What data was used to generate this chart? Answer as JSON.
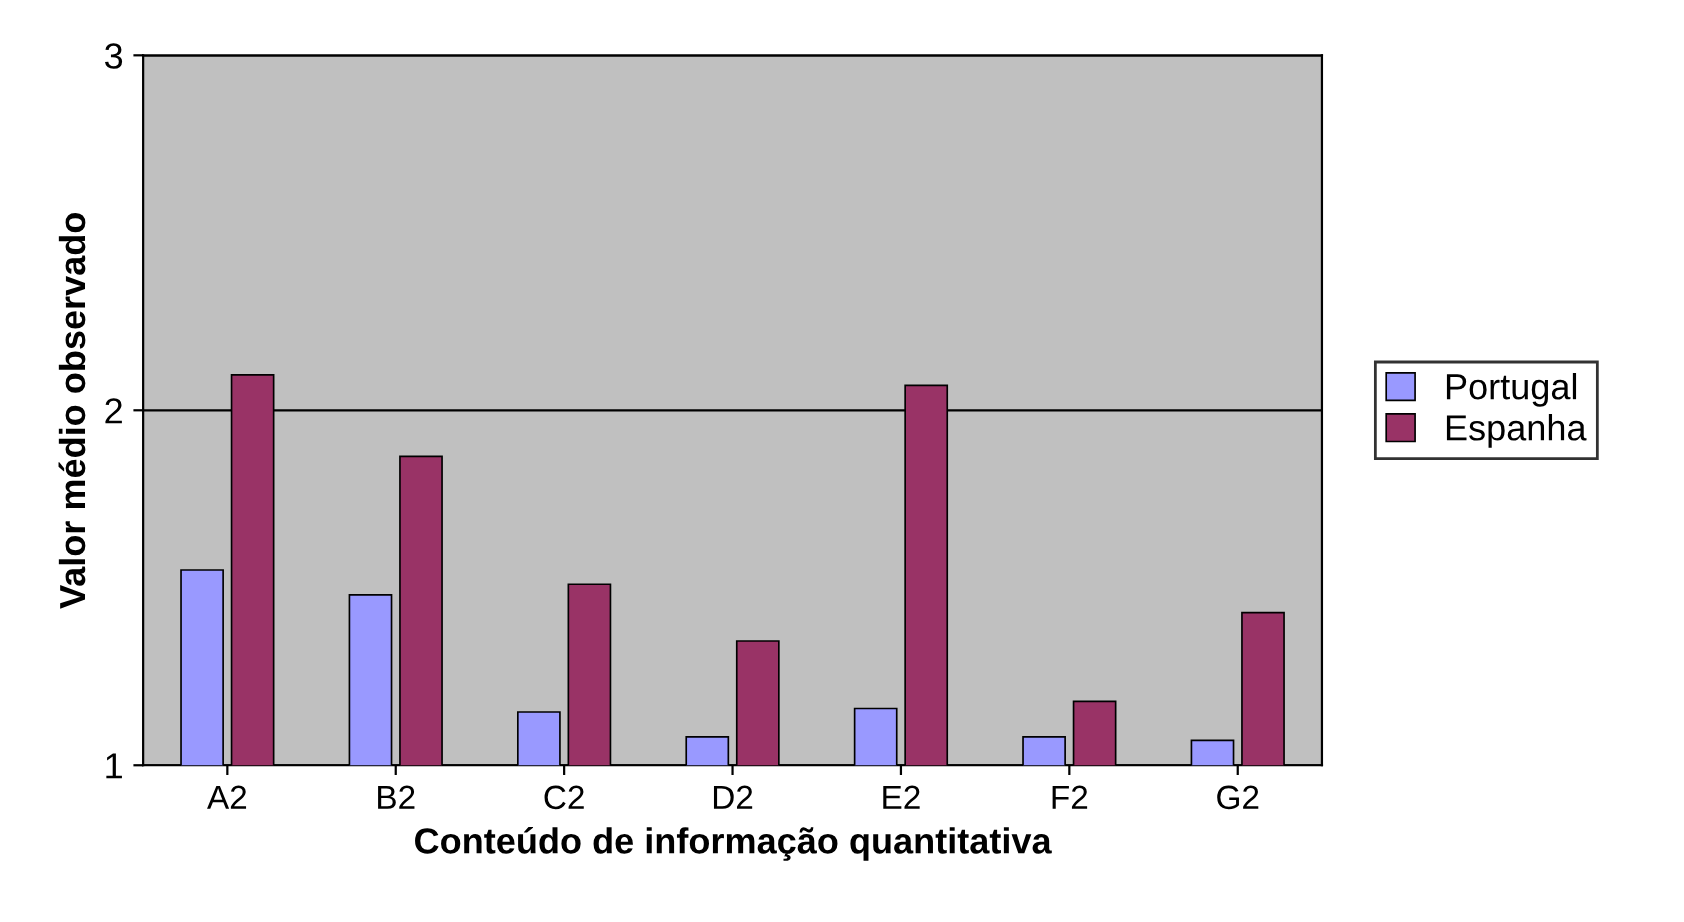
{
  "chart_data": {
    "type": "bar",
    "xlabel": "Conteúdo de informação quantitativa",
    "ylabel": "Valor médio observado",
    "categories": [
      "A2",
      "B2",
      "C2",
      "D2",
      "E2",
      "F2",
      "G2"
    ],
    "series": [
      {
        "name": "Portugal",
        "color": "#9999ff",
        "values": [
          1.55,
          1.48,
          1.15,
          1.08,
          1.16,
          1.08,
          1.07
        ]
      },
      {
        "name": "Espanha",
        "color": "#993366",
        "values": [
          2.1,
          1.87,
          1.51,
          1.35,
          2.07,
          1.18,
          1.43
        ]
      }
    ],
    "ylim": [
      1,
      3
    ],
    "yticks": [
      1,
      2,
      3
    ],
    "grid": "y",
    "legend": "right"
  }
}
